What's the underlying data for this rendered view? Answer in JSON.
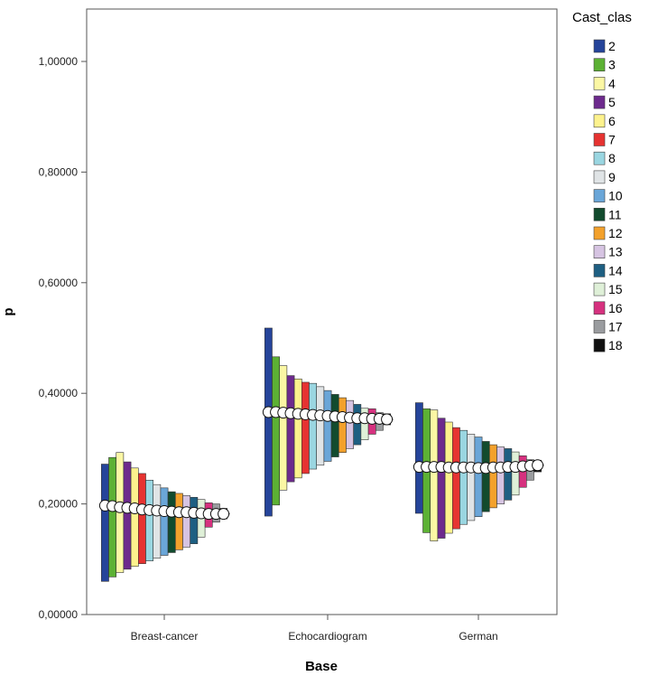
{
  "chart_data": {
    "type": "bar",
    "subtype": "floating range bars with median circles (clustered by Base)",
    "xlabel": "Base",
    "ylabel": "p",
    "ylim": [
      0,
      1.1
    ],
    "yticks": [
      0,
      0.2,
      0.4,
      0.6,
      0.8,
      1.0
    ],
    "ytick_labels": [
      "0,00000",
      "0,20000",
      "0,40000",
      "0,60000",
      "0,80000",
      "1,00000"
    ],
    "categories": [
      "Breast-cancer",
      "Echocardiogram",
      "German"
    ],
    "legend": {
      "title": "Cast_clas",
      "placement": "right",
      "entries": [
        "2",
        "3",
        "4",
        "5",
        "6",
        "7",
        "8",
        "9",
        "10",
        "11",
        "12",
        "13",
        "14",
        "15",
        "16",
        "17",
        "18"
      ],
      "colors": [
        "#25449a",
        "#5cb134",
        "#fbf7a4",
        "#6d2a8d",
        "#fdf28d",
        "#e63331",
        "#9ad6e1",
        "#e0e4e6",
        "#6aa6d8",
        "#124b2e",
        "#f3a12c",
        "#d6c4e2",
        "#1e5f82",
        "#dff0d8",
        "#d6317f",
        "#9a9c9f",
        "#111111"
      ]
    },
    "series": [
      {
        "name": "2",
        "low": [
          0.06,
          0.178,
          0.183
        ],
        "high": [
          0.272,
          0.518,
          0.383
        ],
        "median": [
          0.197,
          0.366,
          0.267
        ]
      },
      {
        "name": "3",
        "low": [
          0.068,
          0.198,
          0.148
        ],
        "high": [
          0.284,
          0.466,
          0.372
        ],
        "median": [
          0.196,
          0.366,
          0.267
        ]
      },
      {
        "name": "4",
        "low": [
          0.076,
          0.225,
          0.133
        ],
        "high": [
          0.293,
          0.45,
          0.37
        ],
        "median": [
          0.194,
          0.365,
          0.267
        ]
      },
      {
        "name": "5",
        "low": [
          0.082,
          0.24,
          0.138
        ],
        "high": [
          0.276,
          0.432,
          0.355
        ],
        "median": [
          0.193,
          0.364,
          0.267
        ]
      },
      {
        "name": "6",
        "low": [
          0.087,
          0.247,
          0.147
        ],
        "high": [
          0.265,
          0.426,
          0.348
        ],
        "median": [
          0.192,
          0.363,
          0.266
        ]
      },
      {
        "name": "7",
        "low": [
          0.092,
          0.255,
          0.155
        ],
        "high": [
          0.255,
          0.42,
          0.338
        ],
        "median": [
          0.19,
          0.362,
          0.266
        ]
      },
      {
        "name": "8",
        "low": [
          0.097,
          0.263,
          0.163
        ],
        "high": [
          0.243,
          0.418,
          0.333
        ],
        "median": [
          0.189,
          0.361,
          0.266
        ]
      },
      {
        "name": "9",
        "low": [
          0.102,
          0.27,
          0.17
        ],
        "high": [
          0.235,
          0.412,
          0.326
        ],
        "median": [
          0.188,
          0.36,
          0.266
        ]
      },
      {
        "name": "10",
        "low": [
          0.107,
          0.277,
          0.177
        ],
        "high": [
          0.229,
          0.405,
          0.321
        ],
        "median": [
          0.187,
          0.359,
          0.265
        ]
      },
      {
        "name": "11",
        "low": [
          0.112,
          0.285,
          0.186
        ],
        "high": [
          0.222,
          0.398,
          0.313
        ],
        "median": [
          0.186,
          0.358,
          0.265
        ]
      },
      {
        "name": "12",
        "low": [
          0.117,
          0.293,
          0.193
        ],
        "high": [
          0.219,
          0.392,
          0.307
        ],
        "median": [
          0.185,
          0.357,
          0.266
        ]
      },
      {
        "name": "13",
        "low": [
          0.122,
          0.3,
          0.2
        ],
        "high": [
          0.215,
          0.387,
          0.303
        ],
        "median": [
          0.185,
          0.356,
          0.266
        ]
      },
      {
        "name": "14",
        "low": [
          0.128,
          0.307,
          0.207
        ],
        "high": [
          0.212,
          0.38,
          0.3
        ],
        "median": [
          0.184,
          0.355,
          0.267
        ]
      },
      {
        "name": "15",
        "low": [
          0.14,
          0.316,
          0.216
        ],
        "high": [
          0.208,
          0.373,
          0.294
        ],
        "median": [
          0.183,
          0.355,
          0.267
        ]
      },
      {
        "name": "16",
        "low": [
          0.158,
          0.326,
          0.23
        ],
        "high": [
          0.202,
          0.372,
          0.287
        ],
        "median": [
          0.182,
          0.354,
          0.268
        ]
      },
      {
        "name": "17",
        "low": [
          0.167,
          0.333,
          0.243
        ],
        "high": [
          0.2,
          0.365,
          0.28
        ],
        "median": [
          0.182,
          0.354,
          0.269
        ]
      },
      {
        "name": "18",
        "low": [
          0.173,
          0.343,
          0.258
        ],
        "high": [
          0.192,
          0.363,
          0.279
        ],
        "median": [
          0.182,
          0.353,
          0.27
        ]
      }
    ]
  }
}
